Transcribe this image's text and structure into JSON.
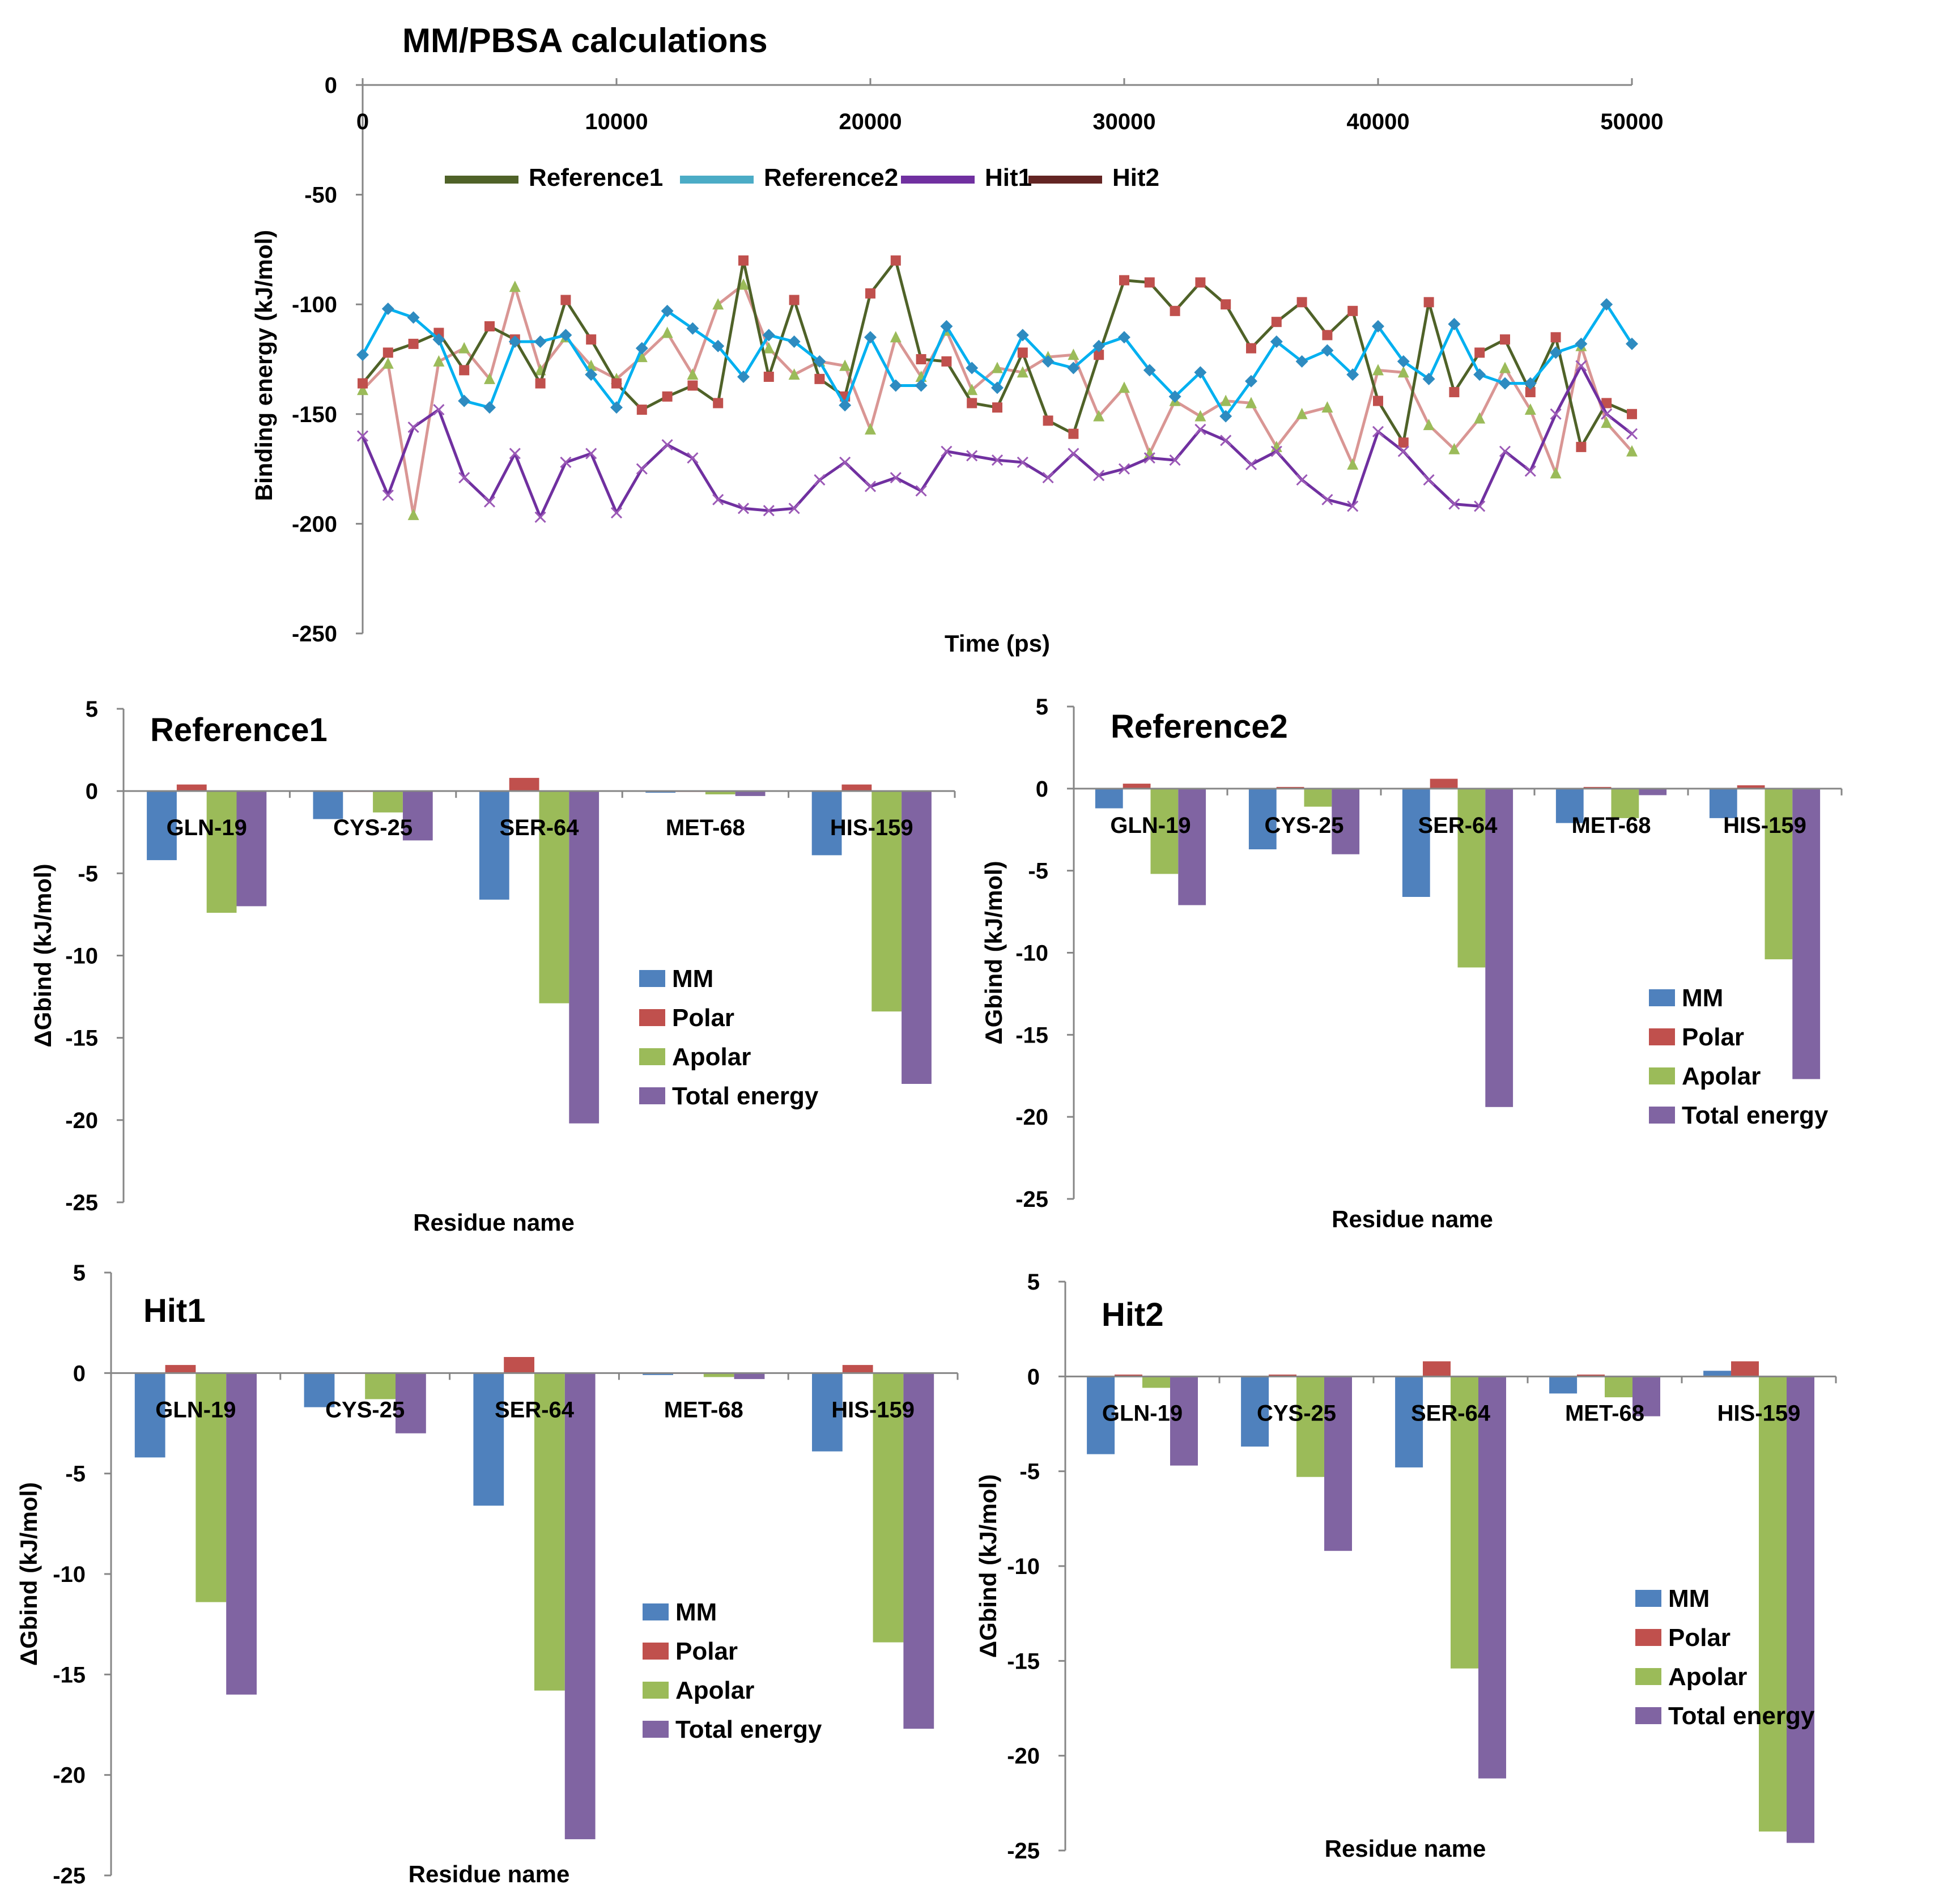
{
  "chart_data": [
    {
      "type": "line",
      "title": "MM/PBSA calculations",
      "xlabel": "Time (ps)",
      "ylabel": "Binding energy (kJ/mol)",
      "xlim": [
        0,
        50000
      ],
      "ylim": [
        -250,
        0
      ],
      "x_ticks": [
        "0",
        "10000",
        "20000",
        "30000",
        "40000",
        "50000"
      ],
      "y_ticks": [
        "0",
        "-50",
        "-100",
        "-150",
        "-200",
        "-250"
      ],
      "legend": [
        "Reference1",
        "Reference2",
        "Hit1",
        "Hit2"
      ],
      "legend_colors": [
        "#4F6228",
        "#4BACC6",
        "#7030A0",
        "#632523"
      ],
      "x": [
        0,
        1000,
        2000,
        3000,
        4000,
        5000,
        6000,
        7000,
        8000,
        9000,
        10000,
        11000,
        12000,
        13000,
        14000,
        15000,
        16000,
        17000,
        18000,
        19000,
        20000,
        21000,
        22000,
        23000,
        24000,
        25000,
        26000,
        27000,
        28000,
        29000,
        30000,
        31000,
        32000,
        33000,
        34000,
        35000,
        36000,
        37000,
        38000,
        39000,
        40000,
        41000,
        42000,
        43000,
        44000,
        45000,
        46000,
        47000,
        48000,
        49000,
        50000
      ],
      "series": [
        {
          "name": "Reference1 (red squares)",
          "color": "#4F6228",
          "marker_color": "#C0504D",
          "marker": "square",
          "values": [
            -136,
            -122,
            -118,
            -113,
            -130,
            -110,
            -116,
            -136,
            -98,
            -116,
            -136,
            -148,
            -142,
            -137,
            -145,
            -80,
            -133,
            -98,
            -134,
            -142,
            -95,
            -80,
            -125,
            -126,
            -145,
            -147,
            -122,
            -153,
            -159,
            -123,
            -89,
            -90,
            -103,
            -90,
            -100,
            -120,
            -108,
            -99,
            -114,
            -103,
            -144,
            -163,
            -99,
            -140,
            -122,
            -116,
            -140,
            -115,
            -165,
            -145,
            -150
          ]
        },
        {
          "name": "Reference2 (blue diamonds)",
          "color": "#00B0F0",
          "marker_color": "#2E8BC0",
          "marker": "diamond",
          "values": [
            -123,
            -102,
            -106,
            -116,
            -144,
            -147,
            -117,
            -117,
            -114,
            -132,
            -147,
            -120,
            -103,
            -111,
            -119,
            -133,
            -114,
            -117,
            -126,
            -146,
            -115,
            -137,
            -137,
            -110,
            -129,
            -138,
            -114,
            -126,
            -129,
            -119,
            -115,
            -130,
            -142,
            -131,
            -151,
            -135,
            -117,
            -126,
            -121,
            -132,
            -110,
            -126,
            -134,
            -109,
            -132,
            -136,
            -136,
            -122,
            -118,
            -100,
            -118
          ]
        },
        {
          "name": "Hit1 (purple crosses)",
          "color": "#7030A0",
          "marker_color": "#9B59B6",
          "marker": "cross",
          "values": [
            -160,
            -187,
            -156,
            -148,
            -179,
            -190,
            -168,
            -197,
            -172,
            -168,
            -195,
            -175,
            -164,
            -170,
            -189,
            -193,
            -194,
            -193,
            -180,
            -172,
            -183,
            -179,
            -185,
            -167,
            -169,
            -171,
            -172,
            -179,
            -168,
            -178,
            -175,
            -170,
            -171,
            -157,
            -162,
            -173,
            -167,
            -180,
            -189,
            -192,
            -158,
            -167,
            -180,
            -191,
            -192,
            -167,
            -176,
            -150,
            -128,
            -150,
            -159
          ]
        },
        {
          "name": "Hit2 (green triangles)",
          "color": "#D99694",
          "marker_color": "#9BBB59",
          "marker": "triangle",
          "values": [
            -139,
            -127,
            -196,
            -126,
            -120,
            -134,
            -92,
            -130,
            -115,
            -128,
            -134,
            -124,
            -113,
            -132,
            -100,
            -91,
            -120,
            -132,
            -126,
            -128,
            -157,
            -115,
            -133,
            -112,
            -139,
            -129,
            -131,
            -124,
            -123,
            -151,
            -138,
            -168,
            -144,
            -151,
            -144,
            -145,
            -165,
            -150,
            -147,
            -173,
            -130,
            -131,
            -155,
            -166,
            -152,
            -129,
            -148,
            -177,
            -119,
            -154,
            -167
          ]
        }
      ]
    },
    {
      "type": "bar",
      "title": "Reference1",
      "xlabel": "Residue name",
      "ylabel": "ΔGbind (kJ/mol)",
      "ylim": [
        -25,
        5
      ],
      "y_ticks": [
        "5",
        "0",
        "-5",
        "-10",
        "-15",
        "-20",
        "-25"
      ],
      "categories": [
        "GLN-19",
        "CYS-25",
        "SER-64",
        "MET-68",
        "HIS-159"
      ],
      "series": [
        {
          "name": "MM",
          "color": "#4F81BD",
          "values": [
            -4.2,
            -1.7,
            -6.6,
            -0.1,
            -3.9
          ]
        },
        {
          "name": "Polar",
          "color": "#C0504D",
          "values": [
            0.4,
            0.0,
            0.8,
            0.0,
            0.4
          ]
        },
        {
          "name": "Apolar",
          "color": "#9BBB59",
          "values": [
            -7.4,
            -1.3,
            -12.9,
            -0.2,
            -13.4
          ]
        },
        {
          "name": "Total energy",
          "color": "#8064A2",
          "values": [
            -7.0,
            -3.0,
            -20.2,
            -0.3,
            -17.8
          ]
        }
      ]
    },
    {
      "type": "bar",
      "title": "Reference2",
      "xlabel": "Residue name",
      "ylabel": "ΔGbind (kJ/mol)",
      "ylim": [
        -25,
        5
      ],
      "y_ticks": [
        "5",
        "0",
        "-5",
        "-10",
        "-15",
        "-20",
        "-25"
      ],
      "categories": [
        "GLN-19",
        "CYS-25",
        "SER-64",
        "MET-68",
        "HIS-159"
      ],
      "series": [
        {
          "name": "MM",
          "color": "#4F81BD",
          "values": [
            -1.2,
            -3.7,
            -6.6,
            -2.1,
            -1.8
          ]
        },
        {
          "name": "Polar",
          "color": "#C0504D",
          "values": [
            0.3,
            0.1,
            0.6,
            0.1,
            0.2
          ]
        },
        {
          "name": "Apolar",
          "color": "#9BBB59",
          "values": [
            -5.2,
            -1.1,
            -10.9,
            -1.8,
            -10.4
          ]
        },
        {
          "name": "Total energy",
          "color": "#8064A2",
          "values": [
            -7.1,
            -4.0,
            -19.4,
            -0.4,
            -17.7
          ]
        }
      ]
    },
    {
      "type": "bar",
      "title": "Hit1",
      "xlabel": "Residue name",
      "ylabel": "ΔGbind (kJ/mol)",
      "ylim": [
        -25,
        5
      ],
      "y_ticks": [
        "5",
        "0",
        "-5",
        "-10",
        "-15",
        "-20",
        "-25"
      ],
      "categories": [
        "GLN-19",
        "CYS-25",
        "SER-64",
        "MET-68",
        "HIS-159"
      ],
      "series": [
        {
          "name": "MM",
          "color": "#4F81BD",
          "values": [
            -4.2,
            -1.7,
            -6.6,
            -0.1,
            -3.9
          ]
        },
        {
          "name": "Polar",
          "color": "#C0504D",
          "values": [
            0.4,
            0.0,
            0.8,
            0.0,
            0.4
          ]
        },
        {
          "name": "Apolar",
          "color": "#9BBB59",
          "values": [
            -11.4,
            -1.3,
            -15.8,
            -0.2,
            -13.4
          ]
        },
        {
          "name": "Total energy",
          "color": "#8064A2",
          "values": [
            -16.0,
            -3.0,
            -23.2,
            -0.3,
            -17.7
          ]
        }
      ]
    },
    {
      "type": "bar",
      "title": "Hit2",
      "xlabel": "Residue name",
      "ylabel": "ΔGbind (kJ/mol)",
      "ylim": [
        -25,
        5
      ],
      "y_ticks": [
        "5",
        "0",
        "-5",
        "-10",
        "-15",
        "-20",
        "-25"
      ],
      "categories": [
        "GLN-19",
        "CYS-25",
        "SER-64",
        "MET-68",
        "HIS-159"
      ],
      "series": [
        {
          "name": "MM",
          "color": "#4F81BD",
          "values": [
            -4.1,
            -3.7,
            -4.8,
            -0.9,
            0.3
          ]
        },
        {
          "name": "Polar",
          "color": "#C0504D",
          "values": [
            0.1,
            0.1,
            0.8,
            0.1,
            0.8
          ]
        },
        {
          "name": "Apolar",
          "color": "#9BBB59",
          "values": [
            -0.6,
            -5.3,
            -15.4,
            -1.1,
            -24.0
          ]
        },
        {
          "name": "Total energy",
          "color": "#8064A2",
          "values": [
            -4.7,
            -9.2,
            -21.2,
            -2.1,
            -24.6
          ]
        }
      ]
    }
  ]
}
